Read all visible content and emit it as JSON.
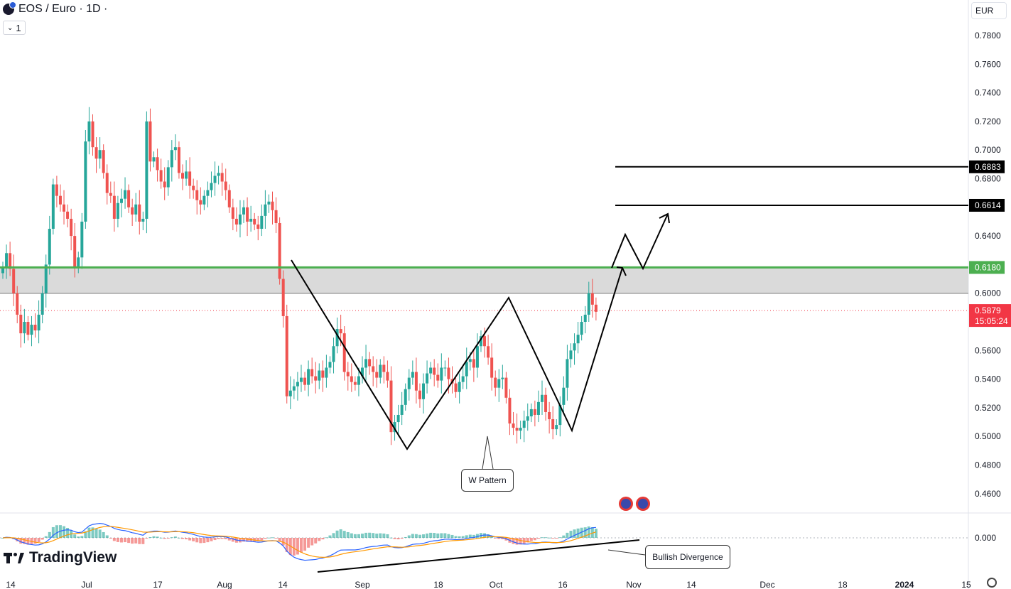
{
  "header": {
    "title": "EOS / Euro · 1D ·",
    "interval": "1",
    "currency": "EUR"
  },
  "brand": {
    "name": "TradingView"
  },
  "colors": {
    "up": "#26a69a",
    "down": "#ef5350",
    "resistance": "#4caf50",
    "zone_fill": "#d6d6d6",
    "target_line": "#000000",
    "price_tag": "#f23645",
    "macd": "#2962ff",
    "signal": "#ff9800"
  },
  "chart_data": {
    "type": "candlestick",
    "x_labels": [
      "14",
      "Jul",
      "17",
      "Aug",
      "14",
      "Sep",
      "18",
      "Oct",
      "16",
      "Nov",
      "14",
      "Dec",
      "18",
      "2024",
      "15"
    ],
    "y_ticks": [
      "0.7800",
      "0.7600",
      "0.7400",
      "0.7200",
      "0.7000",
      "0.6800",
      "0.6400",
      "0.6000",
      "0.5600",
      "0.5400",
      "0.5200",
      "0.5000",
      "0.4800",
      "0.4600"
    ],
    "ylim": [
      0.444,
      0.795
    ],
    "last_price": "0.5879",
    "countdown": "15:05:24",
    "levels": [
      {
        "price": "0.6883",
        "kind": "target"
      },
      {
        "price": "0.6614",
        "kind": "target"
      },
      {
        "price": "0.6180",
        "kind": "resistance"
      }
    ],
    "zone": [
      0.6,
      0.618
    ],
    "closes": [
      0.618,
      0.628,
      0.617,
      0.6,
      0.585,
      0.572,
      0.58,
      0.571,
      0.578,
      0.574,
      0.585,
      0.6,
      0.62,
      0.645,
      0.676,
      0.668,
      0.662,
      0.657,
      0.652,
      0.64,
      0.618,
      0.625,
      0.65,
      0.706,
      0.72,
      0.702,
      0.694,
      0.7,
      0.684,
      0.67,
      0.668,
      0.652,
      0.663,
      0.666,
      0.672,
      0.66,
      0.655,
      0.662,
      0.65,
      0.652,
      0.72,
      0.692,
      0.695,
      0.686,
      0.678,
      0.674,
      0.688,
      0.7,
      0.702,
      0.684,
      0.68,
      0.685,
      0.675,
      0.672,
      0.665,
      0.662,
      0.668,
      0.672,
      0.677,
      0.682,
      0.684,
      0.678,
      0.672,
      0.66,
      0.652,
      0.648,
      0.655,
      0.66,
      0.65,
      0.652,
      0.648,
      0.645,
      0.654,
      0.662,
      0.664,
      0.658,
      0.649,
      0.61,
      0.584,
      0.528,
      0.532,
      0.535,
      0.538,
      0.541,
      0.536,
      0.547,
      0.542,
      0.539,
      0.546,
      0.541,
      0.548,
      0.552,
      0.563,
      0.575,
      0.572,
      0.545,
      0.542,
      0.538,
      0.536,
      0.542,
      0.548,
      0.554,
      0.549,
      0.545,
      0.541,
      0.55,
      0.545,
      0.539,
      0.503,
      0.51,
      0.515,
      0.522,
      0.533,
      0.541,
      0.545,
      0.532,
      0.526,
      0.537,
      0.544,
      0.548,
      0.543,
      0.539,
      0.548,
      0.548,
      0.54,
      0.537,
      0.531,
      0.538,
      0.542,
      0.552,
      0.554,
      0.548,
      0.563,
      0.57,
      0.563,
      0.555,
      0.541,
      0.534,
      0.54,
      0.541,
      0.527,
      0.509,
      0.506,
      0.504,
      0.506,
      0.511,
      0.514,
      0.519,
      0.515,
      0.524,
      0.529,
      0.517,
      0.512,
      0.505,
      0.508,
      0.522,
      0.534,
      0.554,
      0.56,
      0.565,
      0.571,
      0.58,
      0.585,
      0.6,
      0.592,
      0.587
    ]
  },
  "annotations": {
    "w_pattern": "W Pattern",
    "bullish_divergence": "Bullish Divergence"
  },
  "macd": {
    "zero_label": "0.000"
  }
}
